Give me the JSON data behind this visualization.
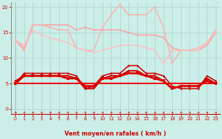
{
  "background_color": "#cceee8",
  "grid_color": "#aad4ce",
  "xlabel": "Vent moyen/en rafales ( km/h )",
  "xlabel_color": "#cc0000",
  "tick_color": "#cc0000",
  "arrow_color": "#cc0000",
  "ylim": [
    -1,
    21
  ],
  "xlim": [
    -0.5,
    23.5
  ],
  "yticks": [
    0,
    5,
    10,
    15,
    20
  ],
  "xticks": [
    0,
    1,
    2,
    3,
    4,
    5,
    6,
    7,
    8,
    9,
    10,
    11,
    12,
    13,
    14,
    15,
    16,
    17,
    18,
    19,
    20,
    21,
    22,
    23
  ],
  "series": [
    {
      "x": [
        0,
        1,
        2,
        3,
        4,
        5,
        6,
        7,
        8,
        9,
        10,
        11,
        12,
        13,
        14,
        15,
        16,
        17,
        18,
        19,
        20,
        21,
        22,
        23
      ],
      "y": [
        13.5,
        11.5,
        16.5,
        16.5,
        16.5,
        16.5,
        16.5,
        15.5,
        16.0,
        15.5,
        15.5,
        15.5,
        15.5,
        15.0,
        14.5,
        14.5,
        14.5,
        14.0,
        12.0,
        11.5,
        11.5,
        11.5,
        12.5,
        15.0
      ],
      "color": "#ff9999",
      "linewidth": 1.0,
      "marker": "s",
      "markersize": 2.0,
      "zorder": 2
    },
    {
      "x": [
        0,
        1,
        2,
        3,
        4,
        5,
        6,
        7,
        8,
        9,
        10,
        11,
        12,
        13,
        14,
        15,
        16,
        17,
        18,
        19,
        20,
        21,
        22,
        23
      ],
      "y": [
        13.5,
        12.0,
        16.5,
        16.5,
        16.0,
        15.5,
        15.5,
        12.0,
        11.5,
        11.5,
        16.0,
        18.5,
        20.5,
        18.5,
        18.5,
        18.5,
        20.0,
        16.0,
        9.0,
        11.5,
        11.5,
        12.0,
        13.0,
        15.5
      ],
      "color": "#ffaaaa",
      "linewidth": 1.0,
      "marker": "s",
      "markersize": 2.0,
      "zorder": 2
    },
    {
      "x": [
        0,
        1,
        2,
        3,
        4,
        5,
        6,
        7,
        8,
        9,
        10,
        11,
        12,
        13,
        14,
        15,
        16,
        17,
        18,
        19,
        20,
        21,
        22,
        23
      ],
      "y": [
        13.5,
        12.5,
        15.5,
        14.5,
        14.0,
        13.5,
        13.0,
        12.0,
        11.5,
        11.0,
        11.5,
        12.0,
        12.5,
        12.5,
        12.5,
        12.0,
        11.5,
        9.0,
        11.5,
        11.5,
        11.5,
        11.5,
        13.0,
        15.0
      ],
      "color": "#ffbbbb",
      "linewidth": 1.0,
      "marker": "s",
      "markersize": 2.0,
      "zorder": 2
    },
    {
      "x": [
        0,
        1,
        2,
        3,
        4,
        5,
        6,
        7,
        8,
        9,
        10,
        11,
        12,
        13,
        14,
        15,
        16,
        17,
        18,
        19,
        20,
        21,
        22,
        23
      ],
      "y": [
        5.0,
        5.0,
        5.0,
        5.0,
        5.0,
        5.0,
        5.0,
        5.0,
        5.0,
        5.0,
        5.0,
        5.0,
        5.0,
        5.0,
        5.0,
        5.0,
        5.0,
        5.0,
        5.0,
        5.0,
        5.0,
        5.0,
        5.0,
        5.0
      ],
      "color": "#ee0000",
      "linewidth": 1.5,
      "marker": "s",
      "markersize": 2.0,
      "zorder": 5
    },
    {
      "x": [
        0,
        1,
        2,
        3,
        4,
        5,
        6,
        7,
        8,
        9,
        10,
        11,
        12,
        13,
        14,
        15,
        16,
        17,
        18,
        19,
        20,
        21,
        22,
        23
      ],
      "y": [
        5.0,
        7.0,
        7.0,
        7.0,
        7.0,
        7.0,
        7.0,
        6.5,
        4.0,
        4.5,
        6.5,
        7.0,
        7.0,
        8.5,
        8.5,
        7.0,
        7.0,
        6.5,
        4.5,
        4.0,
        4.0,
        4.0,
        6.5,
        5.5
      ],
      "color": "#cc0000",
      "linewidth": 1.2,
      "marker": "^",
      "markersize": 2.5,
      "zorder": 4
    },
    {
      "x": [
        0,
        1,
        2,
        3,
        4,
        5,
        6,
        7,
        8,
        9,
        10,
        11,
        12,
        13,
        14,
        15,
        16,
        17,
        18,
        19,
        20,
        21,
        22,
        23
      ],
      "y": [
        5.5,
        6.5,
        6.5,
        6.5,
        6.5,
        6.5,
        6.5,
        6.0,
        4.0,
        4.0,
        6.0,
        6.5,
        6.5,
        7.5,
        7.5,
        6.5,
        6.5,
        5.5,
        4.0,
        4.5,
        4.5,
        4.5,
        6.0,
        5.0
      ],
      "color": "#cc0000",
      "linewidth": 1.5,
      "marker": "s",
      "markersize": 2.0,
      "zorder": 3
    },
    {
      "x": [
        0,
        1,
        2,
        3,
        4,
        5,
        6,
        7,
        8,
        9,
        10,
        11,
        12,
        13,
        14,
        15,
        16,
        17,
        18,
        19,
        20,
        21,
        22,
        23
      ],
      "y": [
        5.0,
        6.5,
        6.5,
        6.5,
        6.5,
        6.5,
        6.0,
        6.0,
        4.5,
        4.5,
        6.0,
        6.0,
        6.5,
        7.0,
        7.0,
        6.5,
        6.0,
        5.5,
        4.0,
        4.5,
        4.5,
        4.5,
        5.5,
        5.0
      ],
      "color": "#dd0000",
      "linewidth": 2.0,
      "marker": "s",
      "markersize": 2.5,
      "zorder": 4
    }
  ],
  "wind_arrows": [
    0,
    1,
    2,
    3,
    4,
    5,
    6,
    7,
    8,
    9,
    10,
    11,
    12,
    13,
    14,
    15,
    16,
    17,
    18,
    19,
    20,
    21,
    22,
    23
  ]
}
